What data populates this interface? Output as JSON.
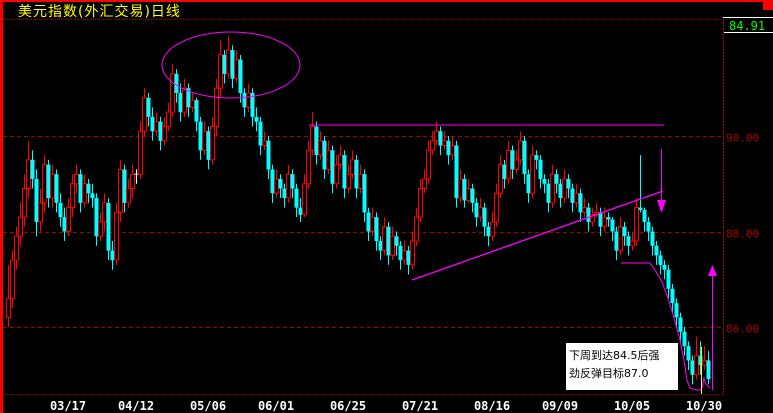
{
  "title": "美元指数(外汇交易)日线",
  "current_price": "84.91",
  "annotation": {
    "line1": "下周到达84.5后强",
    "line2": "劲反弹目标87.0"
  },
  "colors": {
    "up": "#ff0000",
    "down": "#00ffff",
    "doji": "#ffffff",
    "grid": "#a00000",
    "overlay": "#ff00ff",
    "title": "#ffff00",
    "price": "#00ff00"
  },
  "chart_data": {
    "type": "candlestick",
    "title": "美元指数(外汇交易)日线",
    "ylim": [
      84.62,
      92.43
    ],
    "y_ticks": [
      {
        "value": 90,
        "label": "90.00"
      },
      {
        "value": 88,
        "label": "88.00"
      },
      {
        "value": 86,
        "label": "86.00"
      }
    ],
    "x_ticks": [
      {
        "index": 15,
        "label": "03/17"
      },
      {
        "index": 32,
        "label": "04/12"
      },
      {
        "index": 50,
        "label": "05/06"
      },
      {
        "index": 67,
        "label": "06/01"
      },
      {
        "index": 85,
        "label": "06/25"
      },
      {
        "index": 103,
        "label": "07/21"
      },
      {
        "index": 121,
        "label": "08/16"
      },
      {
        "index": 138,
        "label": "09/09"
      },
      {
        "index": 156,
        "label": "10/05"
      },
      {
        "index": 174,
        "label": "10/30"
      }
    ],
    "grid": "horizontal dashed",
    "ohlc": [
      [
        86.2,
        87.3,
        86.0,
        86.6
      ],
      [
        86.6,
        87.6,
        86.4,
        87.4
      ],
      [
        87.4,
        88.1,
        87.2,
        87.9
      ],
      [
        87.9,
        88.6,
        87.7,
        88.3
      ],
      [
        88.3,
        89.2,
        88.1,
        88.9
      ],
      [
        88.9,
        89.9,
        88.7,
        89.5
      ],
      [
        89.5,
        89.7,
        88.9,
        89.1
      ],
      [
        89.1,
        89.3,
        87.9,
        88.2
      ],
      [
        88.2,
        88.9,
        88.0,
        88.6
      ],
      [
        88.6,
        89.6,
        88.4,
        89.4
      ],
      [
        89.4,
        89.5,
        88.5,
        88.7
      ],
      [
        88.7,
        89.4,
        88.5,
        89.2
      ],
      [
        89.2,
        89.3,
        88.4,
        88.6
      ],
      [
        88.6,
        88.8,
        88.1,
        88.3
      ],
      [
        88.3,
        88.5,
        87.8,
        88.0
      ],
      [
        88.0,
        88.7,
        87.9,
        88.5
      ],
      [
        88.5,
        89.2,
        88.3,
        89.0
      ],
      [
        89.0,
        89.4,
        88.8,
        89.2
      ],
      [
        89.2,
        89.3,
        88.4,
        88.6
      ],
      [
        88.6,
        89.2,
        88.5,
        89.0
      ],
      [
        89.0,
        89.1,
        88.6,
        88.8
      ],
      [
        88.8,
        89.0,
        88.5,
        88.7
      ],
      [
        88.7,
        88.8,
        87.7,
        87.9
      ],
      [
        87.9,
        88.4,
        87.8,
        88.2
      ],
      [
        88.2,
        88.8,
        88.0,
        88.6
      ],
      [
        88.6,
        88.7,
        87.4,
        87.6
      ],
      [
        87.6,
        87.8,
        87.2,
        87.4
      ],
      [
        87.4,
        88.6,
        87.3,
        88.4
      ],
      [
        88.4,
        89.5,
        88.2,
        89.3
      ],
      [
        89.3,
        89.4,
        88.4,
        88.6
      ],
      [
        88.6,
        89.1,
        88.5,
        88.9
      ],
      [
        88.9,
        89.4,
        88.7,
        89.2
      ],
      [
        89.2,
        89.3,
        89.0,
        89.2
      ],
      [
        89.2,
        90.3,
        89.1,
        90.1
      ],
      [
        90.1,
        91.0,
        90.0,
        90.8
      ],
      [
        90.8,
        90.9,
        90.2,
        90.4
      ],
      [
        90.4,
        90.6,
        89.9,
        90.1
      ],
      [
        90.1,
        90.5,
        90.0,
        90.3
      ],
      [
        90.3,
        90.4,
        89.7,
        89.9
      ],
      [
        89.9,
        90.4,
        89.8,
        90.2
      ],
      [
        90.2,
        90.7,
        90.1,
        90.5
      ],
      [
        90.5,
        91.5,
        90.4,
        91.3
      ],
      [
        91.3,
        91.4,
        90.7,
        90.9
      ],
      [
        90.9,
        91.1,
        90.3,
        90.5
      ],
      [
        90.5,
        91.2,
        90.4,
        91.0
      ],
      [
        91.0,
        91.1,
        90.4,
        90.6
      ],
      [
        90.6,
        90.9,
        90.5,
        90.75
      ],
      [
        90.75,
        90.8,
        90.1,
        90.3
      ],
      [
        90.3,
        90.4,
        89.5,
        89.7
      ],
      [
        89.7,
        90.3,
        89.6,
        90.1
      ],
      [
        90.1,
        90.2,
        89.3,
        89.5
      ],
      [
        89.5,
        90.4,
        89.4,
        90.2
      ],
      [
        90.2,
        91.2,
        90.0,
        91.0
      ],
      [
        91.0,
        92.0,
        90.8,
        91.7
      ],
      [
        91.7,
        91.8,
        91.1,
        91.3
      ],
      [
        91.3,
        92.1,
        91.2,
        91.8
      ],
      [
        91.8,
        91.9,
        91.0,
        91.2
      ],
      [
        91.2,
        91.8,
        91.1,
        91.6
      ],
      [
        91.6,
        91.7,
        90.7,
        90.9
      ],
      [
        90.9,
        91.0,
        90.4,
        90.6
      ],
      [
        90.6,
        91.1,
        90.5,
        90.9
      ],
      [
        90.9,
        91.0,
        90.2,
        90.4
      ],
      [
        90.4,
        90.6,
        90.1,
        90.3
      ],
      [
        90.3,
        90.4,
        89.6,
        89.8
      ],
      [
        89.8,
        90.1,
        89.7,
        89.9
      ],
      [
        89.9,
        90.0,
        89.1,
        89.3
      ],
      [
        89.3,
        89.4,
        88.6,
        88.8
      ],
      [
        88.8,
        89.3,
        88.7,
        89.1
      ],
      [
        89.1,
        89.2,
        88.7,
        88.9
      ],
      [
        88.9,
        89.0,
        88.5,
        88.7
      ],
      [
        88.7,
        89.4,
        88.6,
        89.2
      ],
      [
        89.2,
        89.3,
        88.7,
        88.9
      ],
      [
        88.9,
        89.0,
        88.3,
        88.5
      ],
      [
        88.5,
        88.7,
        88.2,
        88.35
      ],
      [
        88.35,
        89.2,
        88.3,
        89.0
      ],
      [
        89.0,
        89.9,
        88.9,
        89.7
      ],
      [
        89.7,
        90.5,
        89.6,
        90.2
      ],
      [
        90.2,
        90.3,
        89.4,
        89.6
      ],
      [
        89.6,
        90.1,
        89.5,
        89.9
      ],
      [
        89.9,
        90.0,
        89.1,
        89.3
      ],
      [
        89.3,
        89.9,
        89.2,
        89.7
      ],
      [
        89.7,
        89.8,
        88.8,
        89.0
      ],
      [
        89.0,
        89.6,
        88.9,
        89.4
      ],
      [
        89.4,
        89.8,
        89.3,
        89.6
      ],
      [
        89.6,
        89.7,
        88.7,
        88.9
      ],
      [
        88.9,
        89.4,
        88.8,
        89.2
      ],
      [
        89.2,
        89.7,
        89.1,
        89.5
      ],
      [
        89.5,
        89.6,
        88.7,
        88.9
      ],
      [
        88.9,
        89.4,
        88.8,
        89.2
      ],
      [
        89.2,
        89.3,
        88.2,
        88.4
      ],
      [
        88.4,
        88.5,
        87.8,
        88.0
      ],
      [
        88.0,
        88.5,
        87.9,
        88.3
      ],
      [
        88.3,
        88.4,
        87.6,
        87.8
      ],
      [
        87.8,
        87.9,
        87.4,
        87.6
      ],
      [
        87.6,
        88.3,
        87.5,
        88.1
      ],
      [
        88.1,
        88.2,
        87.3,
        87.5
      ],
      [
        87.5,
        88.1,
        87.4,
        87.9
      ],
      [
        87.9,
        88.0,
        87.5,
        87.7
      ],
      [
        87.7,
        87.8,
        87.2,
        87.4
      ],
      [
        87.4,
        87.8,
        87.3,
        87.6
      ],
      [
        87.6,
        87.7,
        87.1,
        87.3
      ],
      [
        87.3,
        88.0,
        87.2,
        87.8
      ],
      [
        87.8,
        88.5,
        87.7,
        88.3
      ],
      [
        88.3,
        89.1,
        88.2,
        88.9
      ],
      [
        88.9,
        89.3,
        88.8,
        89.1
      ],
      [
        89.1,
        89.9,
        89.0,
        89.7
      ],
      [
        89.7,
        90.1,
        89.6,
        89.9
      ],
      [
        89.9,
        90.3,
        89.8,
        90.1
      ],
      [
        90.1,
        90.2,
        89.6,
        89.8
      ],
      [
        89.8,
        90.1,
        89.7,
        89.9
      ],
      [
        89.9,
        90.0,
        89.4,
        89.6
      ],
      [
        89.6,
        90.0,
        89.5,
        89.8
      ],
      [
        89.8,
        89.9,
        88.5,
        88.7
      ],
      [
        88.7,
        89.3,
        88.6,
        89.1
      ],
      [
        89.1,
        89.2,
        88.5,
        88.65
      ],
      [
        88.65,
        89.1,
        88.6,
        88.9
      ],
      [
        88.9,
        89.0,
        88.4,
        88.6
      ],
      [
        88.6,
        88.7,
        88.1,
        88.3
      ],
      [
        88.3,
        88.7,
        88.2,
        88.5
      ],
      [
        88.5,
        88.6,
        87.9,
        88.1
      ],
      [
        88.1,
        88.2,
        87.7,
        87.9
      ],
      [
        87.9,
        88.4,
        87.8,
        88.2
      ],
      [
        88.2,
        89.0,
        88.1,
        88.8
      ],
      [
        88.8,
        89.6,
        88.7,
        89.4
      ],
      [
        89.4,
        89.5,
        88.9,
        89.1
      ],
      [
        89.1,
        89.9,
        89.0,
        89.7
      ],
      [
        89.7,
        89.8,
        89.1,
        89.3
      ],
      [
        89.3,
        89.7,
        89.2,
        89.5
      ],
      [
        89.5,
        90.1,
        89.4,
        89.9
      ],
      [
        89.9,
        90.0,
        89.0,
        89.2
      ],
      [
        89.2,
        89.3,
        88.6,
        88.8
      ],
      [
        88.8,
        89.8,
        88.7,
        89.6
      ],
      [
        89.6,
        89.7,
        89.3,
        89.5
      ],
      [
        89.5,
        89.6,
        88.9,
        89.1
      ],
      [
        89.1,
        89.2,
        88.8,
        89.0
      ],
      [
        89.0,
        89.1,
        88.4,
        88.6
      ],
      [
        88.6,
        89.4,
        88.5,
        89.2
      ],
      [
        89.2,
        89.3,
        88.8,
        89.0
      ],
      [
        89.0,
        89.1,
        88.5,
        88.7
      ],
      [
        88.7,
        89.3,
        88.6,
        89.1
      ],
      [
        89.1,
        89.2,
        88.7,
        88.9
      ],
      [
        88.9,
        89.0,
        88.4,
        88.6
      ],
      [
        88.6,
        89.0,
        88.5,
        88.8
      ],
      [
        88.8,
        88.9,
        88.2,
        88.4
      ],
      [
        88.4,
        88.7,
        88.3,
        88.5
      ],
      [
        88.5,
        88.6,
        88.0,
        88.2
      ],
      [
        88.2,
        88.5,
        88.1,
        88.35
      ],
      [
        88.35,
        88.6,
        88.3,
        88.4
      ],
      [
        88.4,
        88.5,
        87.9,
        88.1
      ],
      [
        88.1,
        88.5,
        88.0,
        88.3
      ],
      [
        88.3,
        88.4,
        88.1,
        88.25
      ],
      [
        88.25,
        88.3,
        87.8,
        88.0
      ],
      [
        88.0,
        88.1,
        87.4,
        87.6
      ],
      [
        87.6,
        88.3,
        87.5,
        88.1
      ],
      [
        88.1,
        88.2,
        87.7,
        87.9
      ],
      [
        87.9,
        88.0,
        87.5,
        87.7
      ],
      [
        87.7,
        88.0,
        87.6,
        87.8
      ],
      [
        87.8,
        88.7,
        87.7,
        88.5
      ],
      [
        88.5,
        89.6,
        88.4,
        88.45
      ],
      [
        88.45,
        88.5,
        88.0,
        88.2
      ],
      [
        88.2,
        88.3,
        87.8,
        88.0
      ],
      [
        88.0,
        88.1,
        87.5,
        87.7
      ],
      [
        87.7,
        87.8,
        87.3,
        87.5
      ],
      [
        87.5,
        87.6,
        87.1,
        87.3
      ],
      [
        87.3,
        87.4,
        87.0,
        87.2
      ],
      [
        87.2,
        87.3,
        86.6,
        86.8
      ],
      [
        86.8,
        86.9,
        86.3,
        86.5
      ],
      [
        86.5,
        86.6,
        86.0,
        86.2
      ],
      [
        86.2,
        86.3,
        85.7,
        85.9
      ],
      [
        85.9,
        86.0,
        85.4,
        85.6
      ],
      [
        85.6,
        85.7,
        85.1,
        85.3
      ],
      [
        85.3,
        85.4,
        84.8,
        85.0
      ],
      [
        85.0,
        85.8,
        84.9,
        85.4
      ],
      [
        85.4,
        85.7,
        85.0,
        85.2
      ],
      [
        85.2,
        85.6,
        85.1,
        85.3
      ],
      [
        85.3,
        85.5,
        84.8,
        84.91
      ]
    ]
  }
}
